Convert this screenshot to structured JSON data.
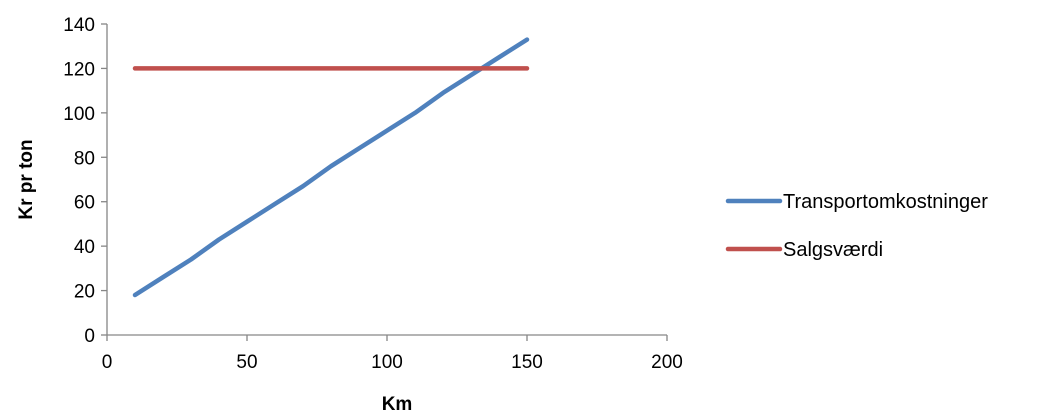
{
  "chart_data": {
    "type": "line",
    "title": "",
    "xlabel": "Km",
    "ylabel": "Kr pr ton",
    "xlim": [
      0,
      200
    ],
    "ylim": [
      0,
      140
    ],
    "xticks": [
      0,
      50,
      100,
      150,
      200
    ],
    "yticks": [
      0,
      20,
      40,
      60,
      80,
      100,
      120,
      140
    ],
    "grid": false,
    "legend_position": "right",
    "series": [
      {
        "name": "Transportomkostninger",
        "color": "#4F81BD",
        "x": [
          10,
          20,
          30,
          40,
          50,
          60,
          70,
          80,
          90,
          100,
          110,
          120,
          130,
          140,
          150
        ],
        "y": [
          18,
          26,
          34,
          43,
          51,
          59,
          67,
          76,
          84,
          92,
          100,
          109,
          117,
          125,
          133
        ]
      },
      {
        "name": "Salgsværdi",
        "color": "#C0504D",
        "x": [
          10,
          20,
          30,
          40,
          50,
          60,
          70,
          80,
          90,
          100,
          110,
          120,
          130,
          140,
          150
        ],
        "y": [
          120,
          120,
          120,
          120,
          120,
          120,
          120,
          120,
          120,
          120,
          120,
          120,
          120,
          120,
          120
        ]
      }
    ]
  }
}
